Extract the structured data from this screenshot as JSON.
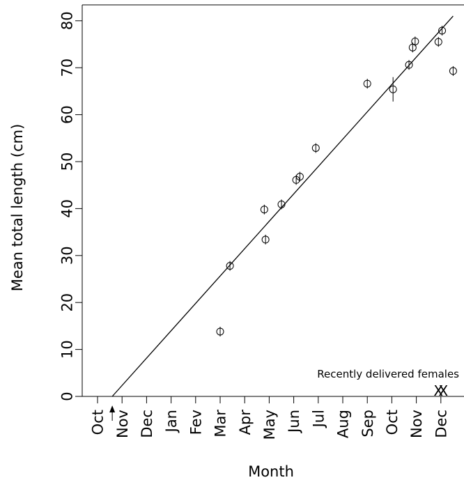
{
  "chart_data": {
    "type": "scatter",
    "xlabel": "Month",
    "ylabel": "Mean total length (cm)",
    "categories": [
      "Oct",
      "Nov",
      "Dec",
      "Jan",
      "Fev",
      "Mar",
      "Apr",
      "May",
      "Jun",
      "Jul",
      "Aug",
      "Sep",
      "Oct",
      "Nov",
      "Dec"
    ],
    "yticks": [
      0,
      10,
      20,
      30,
      40,
      50,
      60,
      70,
      80
    ],
    "ylim": [
      0,
      83
    ],
    "xlim": [
      -0.7,
      14.5
    ],
    "grid": false,
    "series": [
      {
        "values": [
          {
            "x": 5.0,
            "y": 13.8,
            "err": 0.4
          },
          {
            "x": 5.4,
            "y": 27.8,
            "err": 0.5
          },
          {
            "x": 6.8,
            "y": 39.8,
            "err": 0.6
          },
          {
            "x": 6.85,
            "y": 33.4,
            "err": 0.5
          },
          {
            "x": 7.5,
            "y": 40.9,
            "err": 0.6
          },
          {
            "x": 8.1,
            "y": 46.1,
            "err": 0.7
          },
          {
            "x": 8.25,
            "y": 46.8,
            "err": 0.7
          },
          {
            "x": 8.9,
            "y": 52.9,
            "err": 0.8
          },
          {
            "x": 11.0,
            "y": 66.6,
            "err": 0.5
          },
          {
            "x": 12.05,
            "y": 65.4,
            "err": 2.6
          },
          {
            "x": 12.7,
            "y": 70.6,
            "err": 1.0
          },
          {
            "x": 12.85,
            "y": 74.3,
            "err": 0.8
          },
          {
            "x": 12.95,
            "y": 75.6,
            "err": 0.8
          },
          {
            "x": 13.9,
            "y": 75.5,
            "err": 0.8
          },
          {
            "x": 14.05,
            "y": 77.9,
            "err": 0.8
          },
          {
            "x": 14.5,
            "y": 69.3,
            "err": 0.4
          }
        ]
      }
    ],
    "fit_line": [
      {
        "x": 0.6,
        "y": 0
      },
      {
        "x": 14.5,
        "y": 81
      }
    ],
    "arrow": {
      "x": 0.6
    },
    "annotation": "Recently delivered females",
    "delivered_marks": [
      {
        "x": 13.9,
        "y": 1.2,
        "label": "X"
      },
      {
        "x": 14.1,
        "y": 1.2,
        "label": "X"
      }
    ]
  }
}
